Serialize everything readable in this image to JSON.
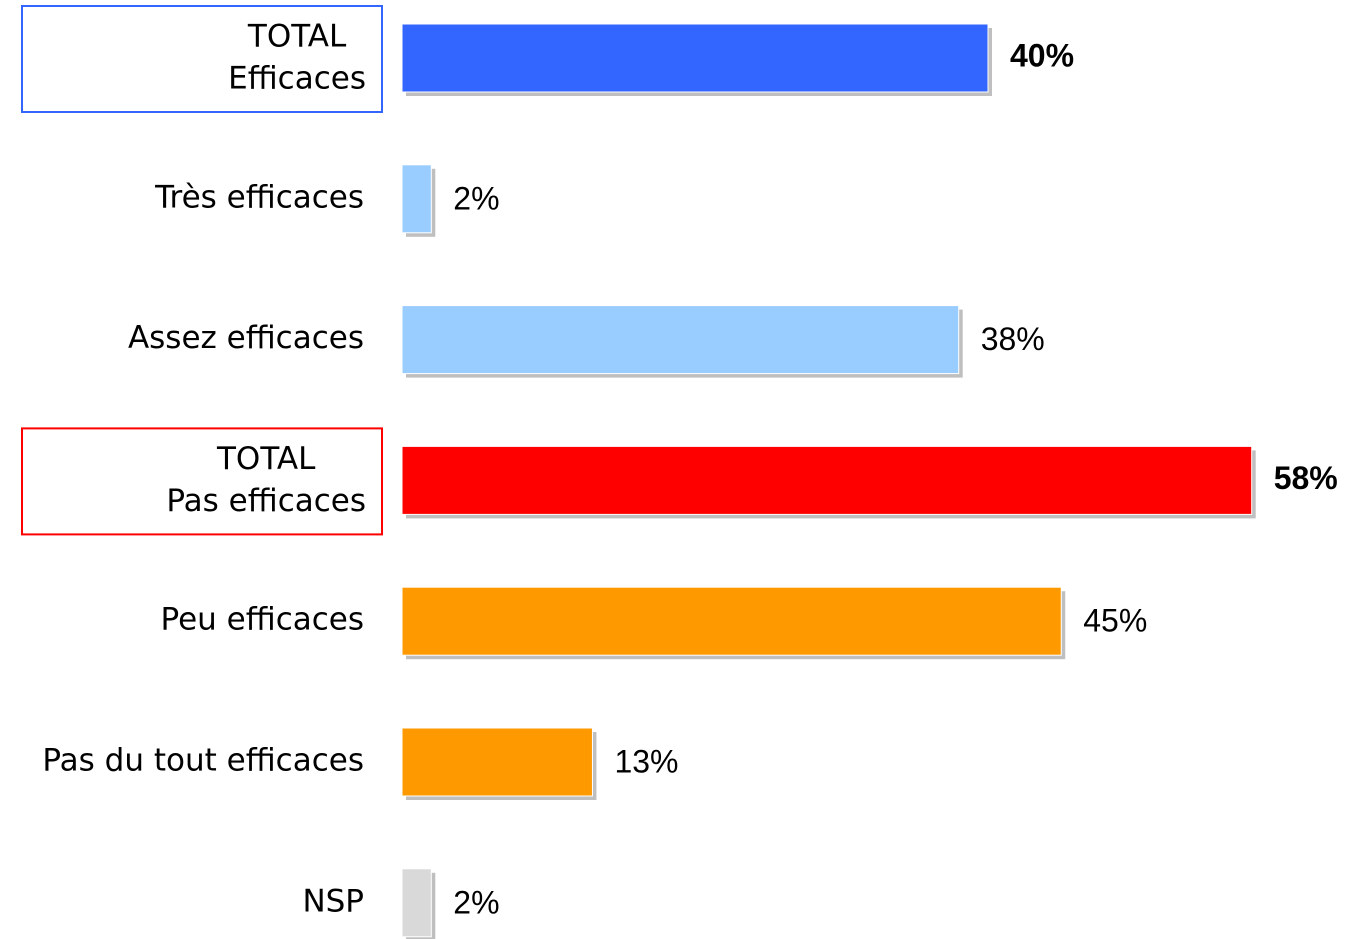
{
  "chart_data": {
    "type": "bar",
    "orientation": "horizontal",
    "categories": [
      [
        "TOTAL",
        "Efficaces"
      ],
      "Très efficaces",
      "Assez efficaces",
      [
        "TOTAL",
        "Pas efficaces"
      ],
      "Peu efficaces",
      "Pas du tout efficaces",
      "NSP"
    ],
    "values": [
      40,
      2,
      38,
      58,
      45,
      13,
      2
    ],
    "value_labels": [
      "40%",
      "2%",
      "38%",
      "58%",
      "45%",
      "13%",
      "2%"
    ],
    "colors": [
      "#3366ff",
      "#99ccff",
      "#99ccff",
      "#ff0000",
      "#ff9900",
      "#ff9900",
      "#d9d9d9"
    ]
  }
}
